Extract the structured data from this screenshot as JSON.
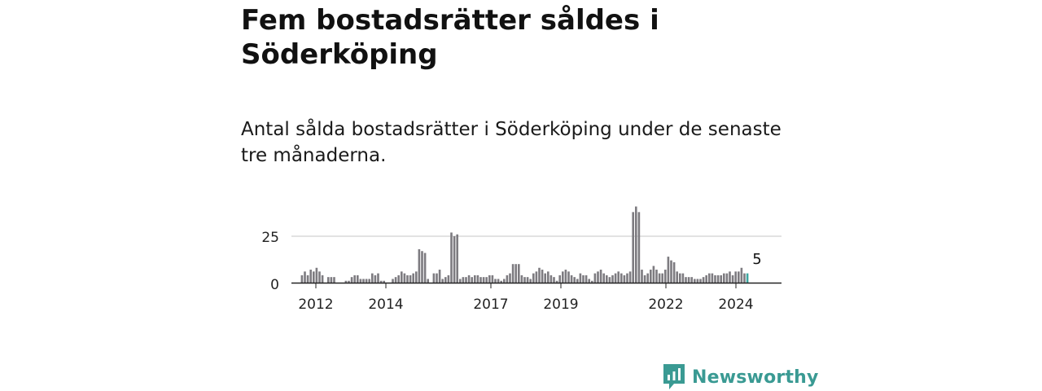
{
  "title": "Fem bostadsrätter såldes i Söderköping",
  "subtitle": "Antal sålda bostadsrätter i Söderköping under de senaste tre månaderna.",
  "brand": {
    "name": "Newsworthy",
    "icon": "newsworthy-logo-icon"
  },
  "colors": {
    "bar": "#7d7b80",
    "highlight": "#3aa6a0",
    "grid": "#d9d9d9",
    "axis": "#222222",
    "brand": "#3a9a93"
  },
  "chart_data": {
    "type": "bar",
    "title": "",
    "xlabel": "",
    "ylabel": "",
    "ylim": [
      0,
      43
    ],
    "yticks": [
      0,
      25
    ],
    "xtick_labels": [
      "2012",
      "2014",
      "2017",
      "2019",
      "2022",
      "2024"
    ],
    "highlight_label": "5",
    "series": [
      {
        "values": [
          0,
          4,
          6,
          4,
          7,
          6,
          8,
          6,
          4,
          0,
          3,
          3,
          3,
          0,
          0,
          0,
          1,
          1,
          3,
          4,
          4,
          2,
          2,
          2,
          2,
          5,
          4,
          5,
          1,
          1,
          0,
          0,
          2,
          3,
          4,
          6,
          5,
          4,
          4,
          5,
          6,
          18,
          17,
          16,
          2,
          0,
          5,
          5,
          7,
          2,
          3,
          4,
          27,
          25,
          26,
          2,
          3,
          3,
          4,
          3,
          4,
          4,
          3,
          3,
          3,
          4,
          4,
          2,
          2,
          1,
          2,
          4,
          5,
          10,
          10,
          10,
          4,
          3,
          3,
          2,
          5,
          6,
          8,
          7,
          5,
          6,
          4,
          3,
          1,
          4,
          6,
          7,
          6,
          4,
          3,
          2,
          5,
          4,
          4,
          2,
          1,
          5,
          6,
          7,
          5,
          4,
          3,
          4,
          5,
          6,
          5,
          4,
          5,
          6,
          38,
          41,
          38,
          7,
          4,
          5,
          7,
          9,
          7,
          5,
          5,
          7,
          14,
          12,
          11,
          6,
          5,
          5,
          3,
          3,
          3,
          2,
          2,
          2,
          3,
          4,
          5,
          5,
          4,
          4,
          4,
          5,
          5,
          6,
          4,
          6,
          6,
          8,
          5,
          5
        ]
      }
    ]
  }
}
